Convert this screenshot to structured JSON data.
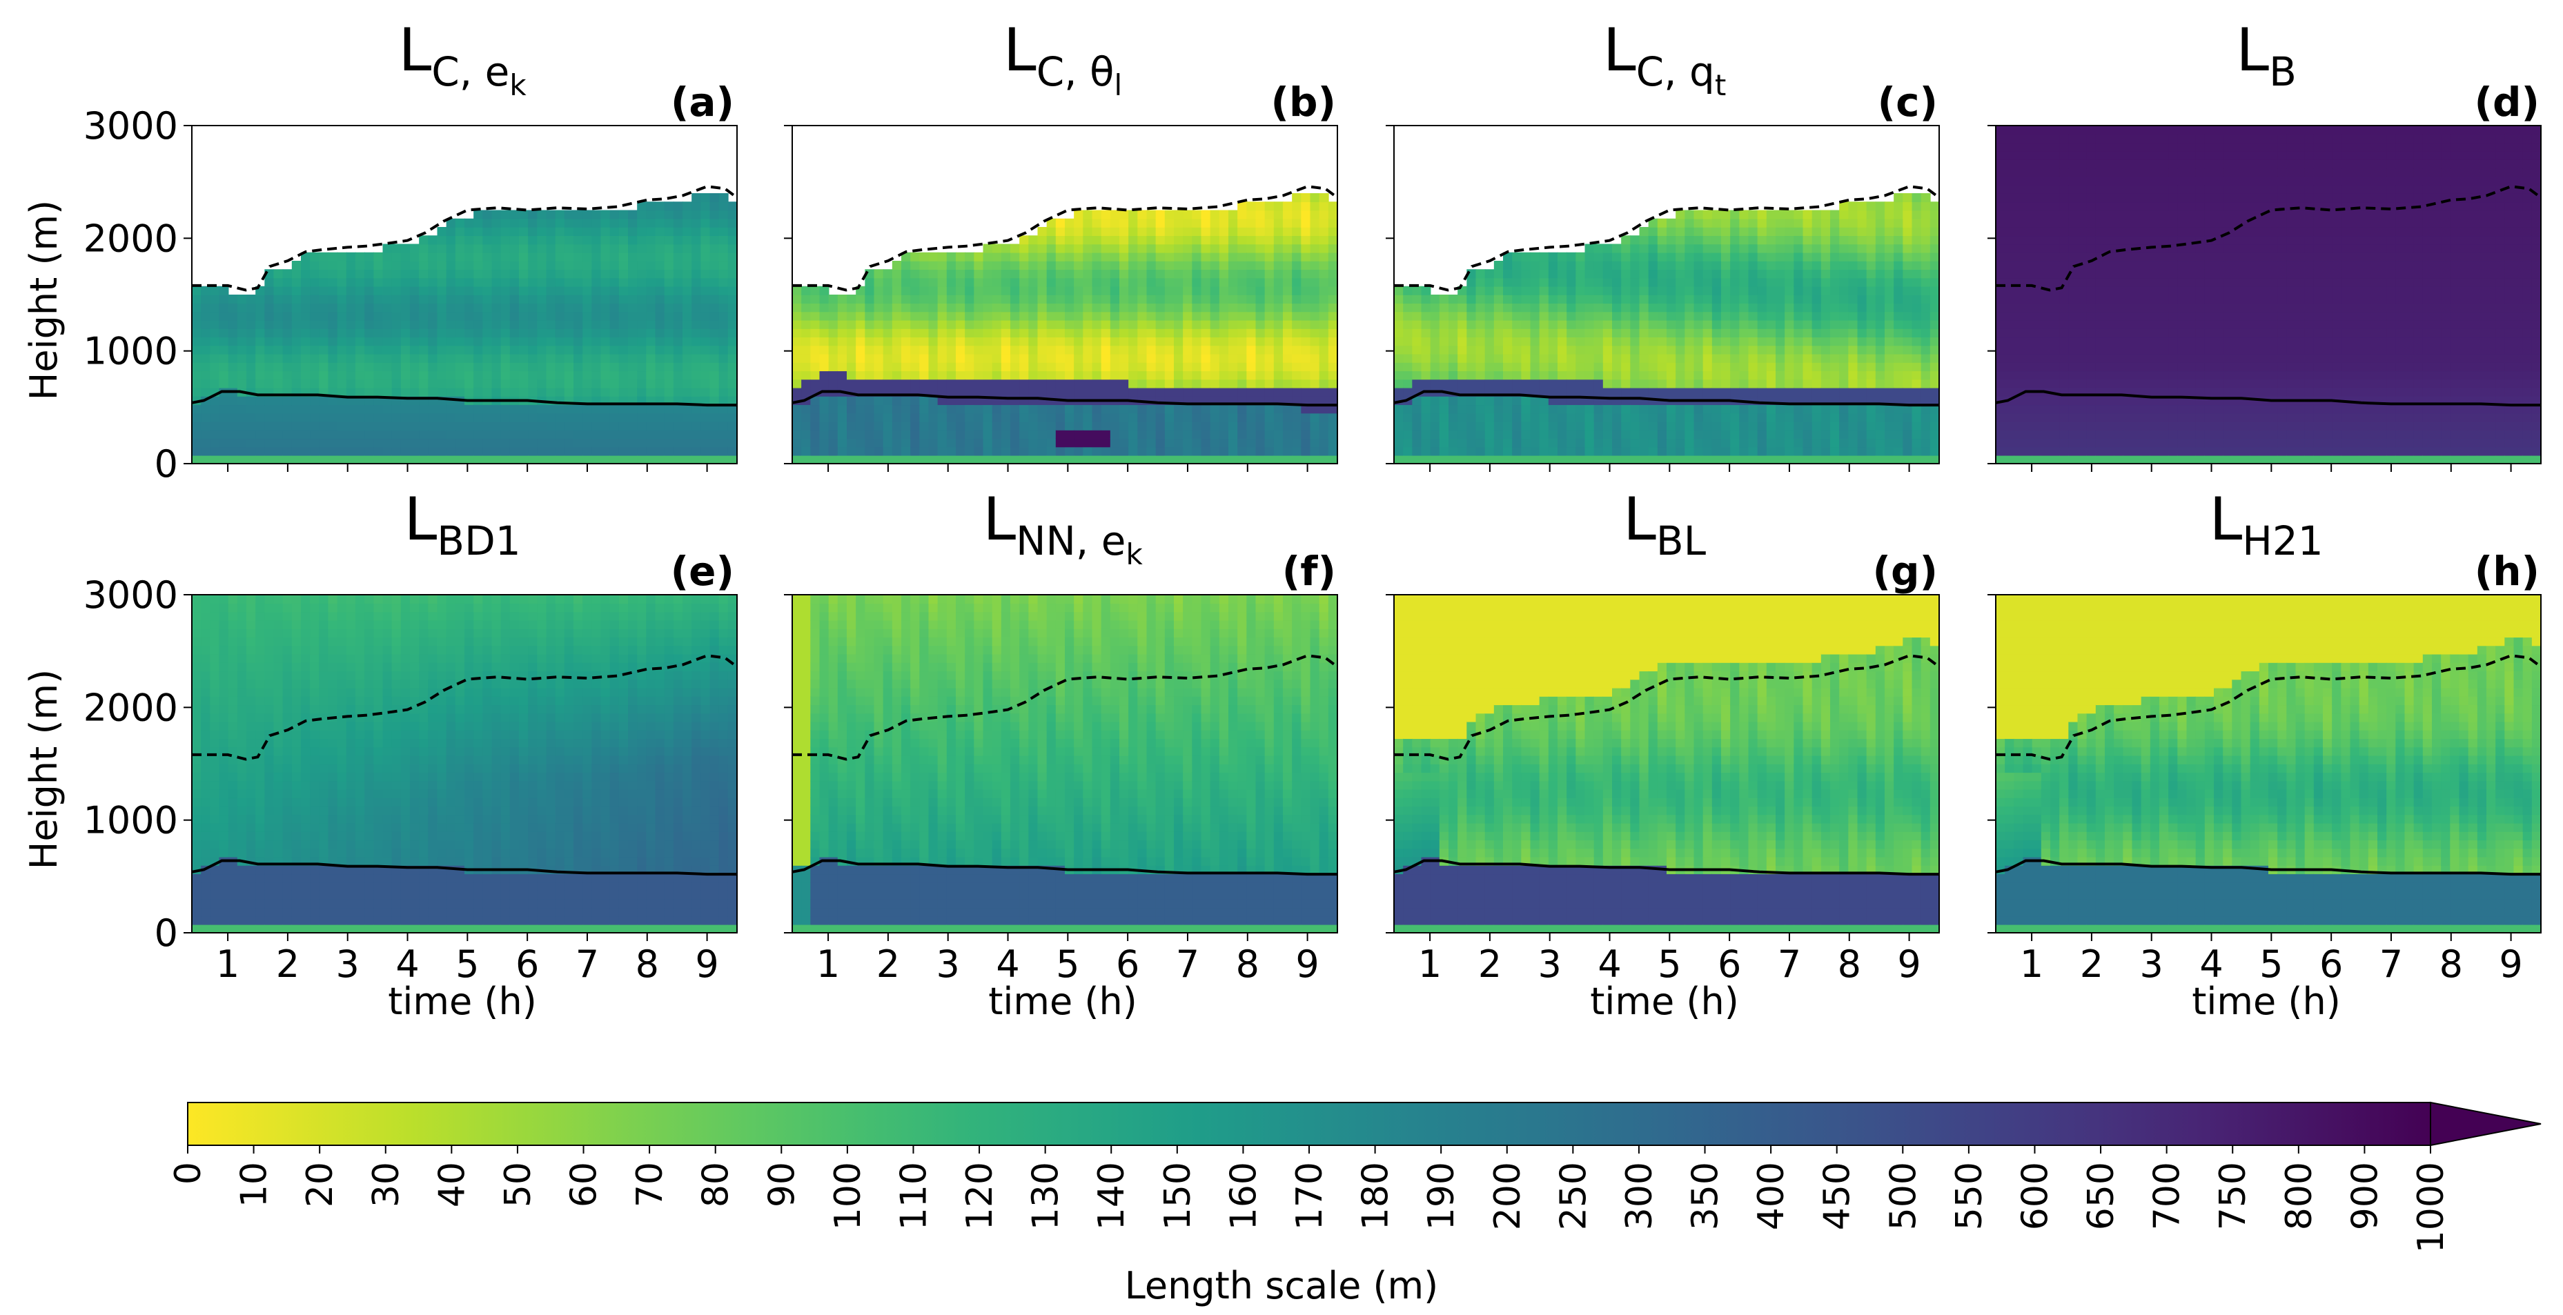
{
  "chart_data": {
    "type": "heatmap",
    "figure_title": "",
    "shared_axes": {
      "xlabel": "time (h)",
      "ylabel": "Height (m)",
      "xlim": [
        0.4,
        9.5
      ],
      "ylim": [
        0,
        3000
      ],
      "xticks": [
        1,
        2,
        3,
        4,
        5,
        6,
        7,
        8,
        9
      ],
      "yticks": [
        0,
        1000,
        2000,
        3000
      ]
    },
    "panels": [
      {
        "id": "a",
        "tag": "(a)",
        "title_base": "L",
        "title_sub": "C, e",
        "title_subsub": "k",
        "pattern": "cek"
      },
      {
        "id": "b",
        "tag": "(b)",
        "title_base": "L",
        "title_sub": "C, θ",
        "title_subsub": "l",
        "pattern": "ctheta"
      },
      {
        "id": "c",
        "tag": "(c)",
        "title_base": "L",
        "title_sub": "C, q",
        "title_subsub": "t",
        "pattern": "cqt"
      },
      {
        "id": "d",
        "tag": "(d)",
        "title_base": "L",
        "title_sub": "B",
        "title_subsub": "",
        "pattern": "b"
      },
      {
        "id": "e",
        "tag": "(e)",
        "title_base": "L",
        "title_sub": "BD1",
        "title_subsub": "",
        "pattern": "bd1"
      },
      {
        "id": "f",
        "tag": "(f)",
        "title_base": "L",
        "title_sub": "NN, e",
        "title_subsub": "k",
        "pattern": "nn"
      },
      {
        "id": "g",
        "tag": "(g)",
        "title_base": "L",
        "title_sub": "BL",
        "title_subsub": "",
        "pattern": "bl"
      },
      {
        "id": "h",
        "tag": "(h)",
        "title_base": "L",
        "title_sub": "H21",
        "title_subsub": "",
        "pattern": "h21"
      }
    ],
    "overlay_lines": {
      "solid_boundary_height": {
        "style": "solid",
        "time": [
          0.4,
          0.6,
          0.9,
          1.0,
          1.2,
          1.5,
          2.0,
          2.5,
          3.0,
          3.5,
          4.0,
          4.5,
          5.0,
          5.5,
          6.0,
          6.5,
          7.0,
          7.5,
          8.0,
          8.5,
          9.0,
          9.5
        ],
        "height": [
          540,
          560,
          640,
          640,
          640,
          610,
          610,
          610,
          590,
          590,
          580,
          580,
          560,
          560,
          560,
          540,
          530,
          530,
          530,
          530,
          520,
          520
        ]
      },
      "dashed_top_height": {
        "style": "dashed",
        "time": [
          0.4,
          0.7,
          1.0,
          1.3,
          1.5,
          1.7,
          2.0,
          2.3,
          2.6,
          3.0,
          3.3,
          3.6,
          4.0,
          4.3,
          4.6,
          5.0,
          5.5,
          6.0,
          6.5,
          7.0,
          7.5,
          8.0,
          8.3,
          8.6,
          9.0,
          9.3,
          9.5
        ],
        "height": [
          1580,
          1580,
          1580,
          1540,
          1560,
          1750,
          1800,
          1880,
          1900,
          1920,
          1930,
          1950,
          1980,
          2050,
          2150,
          2250,
          2270,
          2250,
          2270,
          2260,
          2280,
          2340,
          2350,
          2380,
          2460,
          2440,
          2360
        ]
      }
    },
    "colorbar": {
      "label": "Length scale (m)",
      "cmap": "viridis_r",
      "extend": "max",
      "ticks": [
        0,
        10,
        20,
        30,
        40,
        50,
        60,
        70,
        80,
        90,
        100,
        110,
        120,
        130,
        140,
        150,
        160,
        170,
        180,
        190,
        200,
        250,
        300,
        350,
        400,
        450,
        500,
        550,
        600,
        650,
        700,
        750,
        800,
        900,
        1000
      ]
    }
  }
}
